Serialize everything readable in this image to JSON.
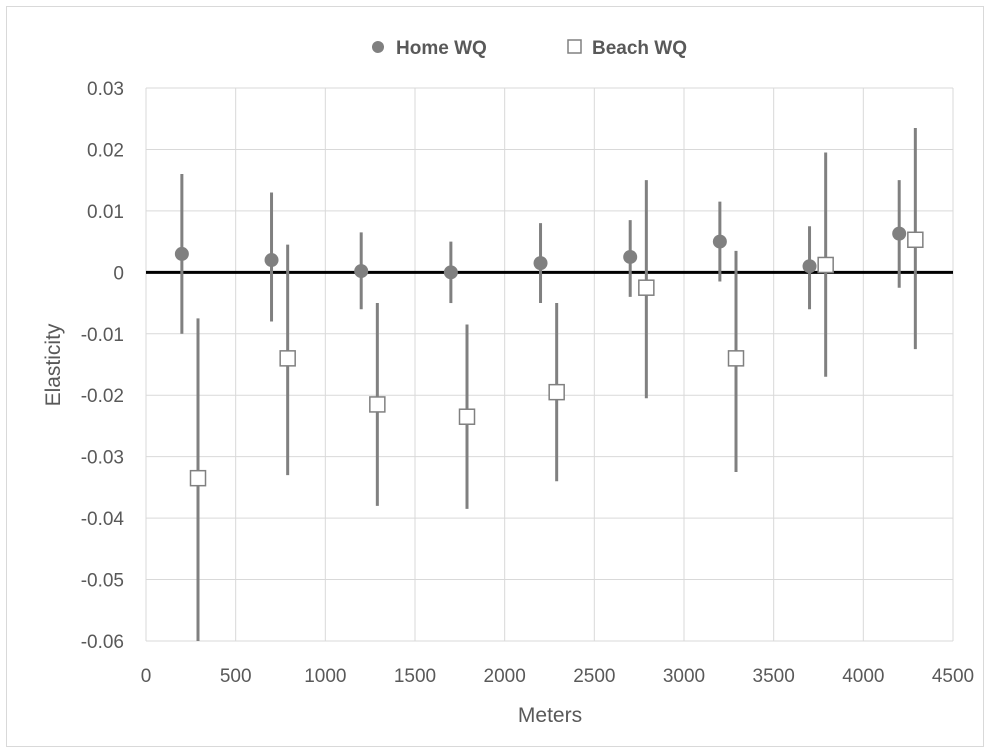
{
  "chart_data": {
    "type": "scatter",
    "title": "",
    "xlabel": "Meters",
    "ylabel": "Elasticity",
    "xlim": [
      0,
      4500
    ],
    "ylim": [
      -0.06,
      0.03
    ],
    "x_ticks": [
      0,
      500,
      1000,
      1500,
      2000,
      2500,
      3000,
      3500,
      4000,
      4500
    ],
    "y_ticks": [
      0.03,
      0.02,
      0.01,
      0,
      -0.01,
      -0.02,
      -0.03,
      -0.04,
      -0.05,
      -0.06
    ],
    "x_tick_labels": [
      "0",
      "500",
      "1000",
      "1500",
      "2000",
      "2500",
      "3000",
      "3500",
      "4000",
      "4500"
    ],
    "y_tick_labels": [
      "0.03",
      "0.02",
      "0.01",
      "0",
      "-0.01",
      "-0.02",
      "-0.03",
      "-0.04",
      "-0.05",
      "-0.06"
    ],
    "grid": true,
    "legend_position": "top-center",
    "zero_line": true,
    "series": [
      {
        "name": "Home WQ",
        "marker": "filled-circle",
        "color": "#808080",
        "points": [
          {
            "x": 200,
            "y": 0.003,
            "low": -0.01,
            "high": 0.016
          },
          {
            "x": 700,
            "y": 0.002,
            "low": -0.008,
            "high": 0.013
          },
          {
            "x": 1200,
            "y": 0.0002,
            "low": -0.006,
            "high": 0.0065
          },
          {
            "x": 1700,
            "y": 0.0,
            "low": -0.005,
            "high": 0.005
          },
          {
            "x": 2200,
            "y": 0.0015,
            "low": -0.005,
            "high": 0.008
          },
          {
            "x": 2700,
            "y": 0.0025,
            "low": -0.004,
            "high": 0.0085
          },
          {
            "x": 3200,
            "y": 0.005,
            "low": -0.0015,
            "high": 0.0115
          },
          {
            "x": 3700,
            "y": 0.001,
            "low": -0.006,
            "high": 0.0075
          },
          {
            "x": 4200,
            "y": 0.0063,
            "low": -0.0025,
            "high": 0.015
          }
        ]
      },
      {
        "name": "Beach WQ",
        "marker": "hollow-square",
        "color": "#808080",
        "points": [
          {
            "x": 290,
            "y": -0.0335,
            "low": -0.06,
            "high": -0.0075
          },
          {
            "x": 790,
            "y": -0.014,
            "low": -0.033,
            "high": 0.0045
          },
          {
            "x": 1290,
            "y": -0.0215,
            "low": -0.038,
            "high": -0.005
          },
          {
            "x": 1790,
            "y": -0.0235,
            "low": -0.0385,
            "high": -0.0085
          },
          {
            "x": 2290,
            "y": -0.0195,
            "low": -0.034,
            "high": -0.005
          },
          {
            "x": 2790,
            "y": -0.0025,
            "low": -0.0205,
            "high": 0.015
          },
          {
            "x": 3290,
            "y": -0.014,
            "low": -0.0325,
            "high": 0.0035
          },
          {
            "x": 3790,
            "y": 0.0012,
            "low": -0.017,
            "high": 0.0195
          },
          {
            "x": 4290,
            "y": 0.0053,
            "low": -0.0125,
            "high": 0.0235
          }
        ]
      }
    ]
  },
  "legend": {
    "home_label": "Home WQ",
    "beach_label": "Beach WQ"
  },
  "colors": {
    "marker": "#808080",
    "grid": "#d9d9d9",
    "zero_line": "#000000",
    "text": "#595959"
  }
}
